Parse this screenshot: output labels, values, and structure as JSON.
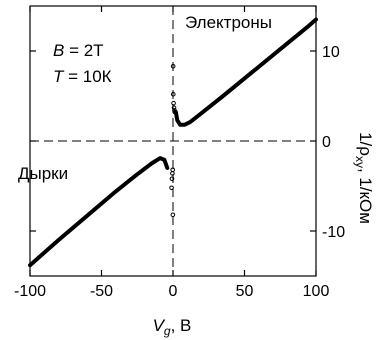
{
  "chart_data": {
    "type": "line",
    "xlabel_symbol": "V",
    "xlabel_sub": "g",
    "xlabel_unit": ", В",
    "ylabel_main": "1/ρ",
    "ylabel_sub": "xy",
    "ylabel_unit": ", 1/кОм",
    "xlim": [
      -100,
      100
    ],
    "ylim": [
      -15,
      15
    ],
    "x_ticks": [
      -100,
      -50,
      0,
      50,
      100
    ],
    "x_tick_labels": [
      "-100",
      "-50",
      "0",
      "50",
      "100"
    ],
    "y_ticks": [
      -10,
      0,
      10
    ],
    "y_tick_labels": [
      "-10",
      "0",
      "10"
    ],
    "grid": false,
    "annotations": {
      "electrons": "Электроны",
      "holes": "Дырки",
      "b_sym": "B",
      "b_val": " = 2Т",
      "t_sym": "T",
      "t_val": " = 10К"
    },
    "series": [
      {
        "style": "solid",
        "x": [
          -100,
          -80,
          -60,
          -40,
          -25,
          -15,
          -9,
          -6,
          -4
        ],
        "y": [
          -13.8,
          -11.0,
          -8.3,
          -5.6,
          -3.7,
          -2.5,
          -1.9,
          -2.1,
          -3.0
        ]
      },
      {
        "style": "solid",
        "x": [
          2,
          3,
          5,
          8,
          12,
          20,
          35,
          55,
          75,
          95,
          100
        ],
        "y": [
          3.2,
          2.3,
          1.8,
          1.8,
          2.1,
          3.1,
          5.0,
          7.6,
          10.2,
          12.8,
          13.5
        ]
      },
      {
        "style": "markers",
        "x": [
          0.1,
          0.2,
          0.4,
          0.7,
          1.0,
          1.4,
          -0.2,
          -0.4,
          -0.7,
          -1.0,
          -0.1
        ],
        "y": [
          8.3,
          5.2,
          4.2,
          3.7,
          3.4,
          3.2,
          -3.2,
          -3.6,
          -4.2,
          -5.2,
          -8.2
        ]
      }
    ]
  }
}
